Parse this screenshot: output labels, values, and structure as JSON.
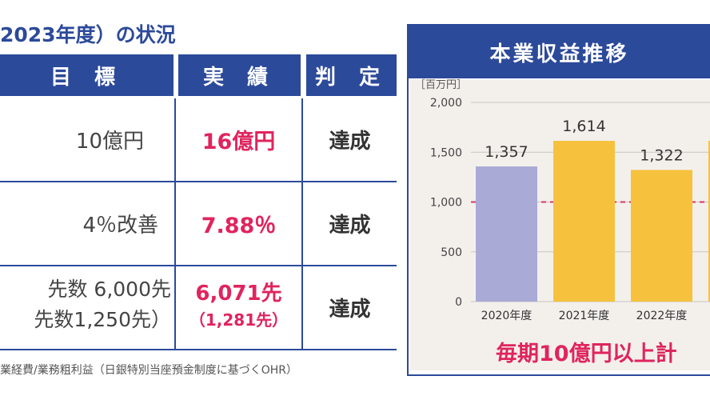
{
  "title": "2023年度）の状況",
  "table": {
    "headers": {
      "target": "目 標",
      "actual": "実 績",
      "verdict": "判 定"
    },
    "rows": [
      {
        "target": "10億円",
        "actual": "16億円",
        "verdict": "達成"
      },
      {
        "target": "4％改善",
        "actual": "7.88％",
        "verdict": "達成"
      },
      {
        "target_line1": "先数 6,000先",
        "target_line2": "先数1,250先）",
        "actual_line1": "6,071先",
        "actual_line2": "（1,281先）",
        "verdict": "達成"
      }
    ],
    "note": "業経費/業務粗利益（日銀特別当座預金制度に基づくOHR）"
  },
  "chart_panel": {
    "title": "本業収益推移",
    "footer": "毎期10億円以上計"
  },
  "chart_data": {
    "type": "bar",
    "title": "本業収益推移",
    "ylabel": "［百万円］",
    "ylim": [
      0,
      2000
    ],
    "yticks": [
      "0",
      "500",
      "1,000",
      "1,500",
      "2,000"
    ],
    "reference_line": 1000,
    "categories": [
      "2020年度",
      "2021年度",
      "2022年度"
    ],
    "values": [
      1357,
      1614,
      1322
    ],
    "value_labels": [
      "1,357",
      "1,614",
      "1,322"
    ],
    "bar_colors": [
      "#a9aad6",
      "#f6c23e",
      "#f6c23e"
    ],
    "partial_next_bar_value": 1614,
    "colors": {
      "accent": "#2c4a9a",
      "highlight": "#e0245e",
      "bar_lavender": "#a9aad6",
      "bar_yellow": "#f6c23e"
    }
  }
}
